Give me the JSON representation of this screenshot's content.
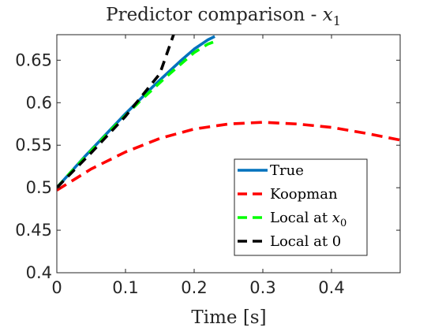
{
  "chart_data": {
    "type": "line",
    "title": "Predictor comparison - ",
    "title_math": "x",
    "title_sub": "1",
    "xlabel": "Time [s]",
    "ylabel": "",
    "xlim": [
      0,
      0.5
    ],
    "ylim": [
      0.4,
      0.68
    ],
    "xticks": [
      0,
      0.1,
      0.2,
      0.3,
      0.4
    ],
    "yticks": [
      0.4,
      0.45,
      0.5,
      0.55,
      0.6,
      0.65
    ],
    "xtick_labels": [
      "0",
      "0.1",
      "0.2",
      "0.3",
      "0.4"
    ],
    "ytick_labels": [
      "0.4",
      "0.45",
      "0.5",
      "0.55",
      "0.6",
      "0.65"
    ],
    "grid": false,
    "legend_position": "bottom-right",
    "series": [
      {
        "name": "True",
        "color": "#0072BD",
        "dash": "solid",
        "x": [
          0,
          0.02,
          0.04,
          0.06,
          0.08,
          0.1,
          0.12,
          0.14,
          0.16,
          0.18,
          0.2,
          0.22,
          0.23
        ],
        "y": [
          0.5,
          0.518,
          0.536,
          0.553,
          0.57,
          0.587,
          0.603,
          0.619,
          0.634,
          0.649,
          0.663,
          0.674,
          0.678
        ]
      },
      {
        "name": "Koopman",
        "legend_text": "Koopman",
        "color": "#FF0000",
        "dash": "dashed",
        "x": [
          0,
          0.05,
          0.1,
          0.15,
          0.2,
          0.25,
          0.3,
          0.35,
          0.4,
          0.45,
          0.5
        ],
        "y": [
          0.497,
          0.522,
          0.542,
          0.558,
          0.569,
          0.575,
          0.577,
          0.575,
          0.571,
          0.564,
          0.556
        ]
      },
      {
        "name": "Local at x0",
        "legend_text": "Local at ",
        "legend_math": "x",
        "legend_sub": "0",
        "color": "#00FF00",
        "dash": "dashed",
        "x": [
          0,
          0.02,
          0.04,
          0.06,
          0.08,
          0.1,
          0.12,
          0.14,
          0.16,
          0.18,
          0.2,
          0.22,
          0.23
        ],
        "y": [
          0.5,
          0.518,
          0.535,
          0.552,
          0.569,
          0.585,
          0.601,
          0.616,
          0.631,
          0.645,
          0.659,
          0.669,
          0.672
        ]
      },
      {
        "name": "Local at 0",
        "legend_text": "Local at 0",
        "color": "#000000",
        "dash": "dashed",
        "x": [
          0,
          0.05,
          0.1,
          0.15,
          0.17
        ],
        "y": [
          0.5,
          0.541,
          0.584,
          0.634,
          0.68
        ]
      }
    ]
  }
}
